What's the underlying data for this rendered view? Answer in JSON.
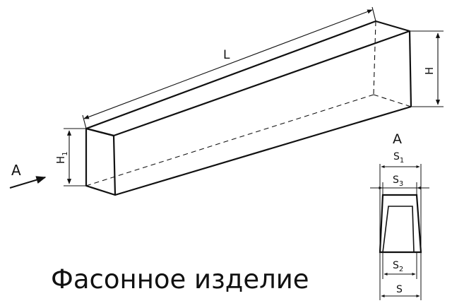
{
  "diagram": {
    "labels": {
      "length": "L",
      "height_end": "H",
      "height_front_main": "H",
      "height_front_sub": "1",
      "view_arrow": "A",
      "section_title": "A",
      "s1_main": "S",
      "s1_sub": "1",
      "s3_main": "S",
      "s3_sub": "3",
      "s2_main": "S",
      "s2_sub": "2",
      "s": "S"
    },
    "colors": {
      "line": "#111111",
      "background": "#ffffff"
    }
  },
  "caption": "Фасонное изделие"
}
